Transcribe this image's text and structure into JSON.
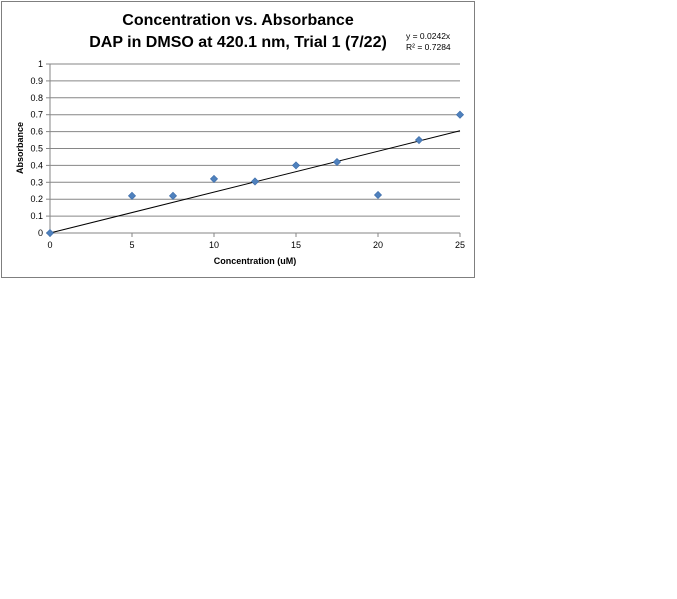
{
  "chart_data": {
    "type": "scatter",
    "title": "Concentration vs. Absorbance",
    "subtitle": "DAP in DMSO at 420.1 nm, Trial 1 (7/22)",
    "xlabel": "Concentration (uM)",
    "ylabel": "Absorbance",
    "xlim": [
      0,
      25
    ],
    "ylim": [
      0,
      1
    ],
    "x_ticks": [
      0,
      5,
      10,
      15,
      20,
      25
    ],
    "y_ticks": [
      0,
      0.1,
      0.2,
      0.3,
      0.4,
      0.5,
      0.6,
      0.7,
      0.8,
      0.9,
      1
    ],
    "grid": "horizontal",
    "marker_color": "#4f81bd",
    "trendline_color": "#000000",
    "points": [
      {
        "x": 0,
        "y": 0
      },
      {
        "x": 5,
        "y": 0.22
      },
      {
        "x": 7.5,
        "y": 0.22
      },
      {
        "x": 10,
        "y": 0.32
      },
      {
        "x": 12.5,
        "y": 0.305
      },
      {
        "x": 15,
        "y": 0.4
      },
      {
        "x": 17.5,
        "y": 0.42
      },
      {
        "x": 20,
        "y": 0.225
      },
      {
        "x": 22.5,
        "y": 0.55
      },
      {
        "x": 25,
        "y": 0.7
      }
    ],
    "trendline": {
      "slope": 0.0242,
      "equation": "y = 0.0242x",
      "r2_label": "R² = 0.7284"
    }
  }
}
